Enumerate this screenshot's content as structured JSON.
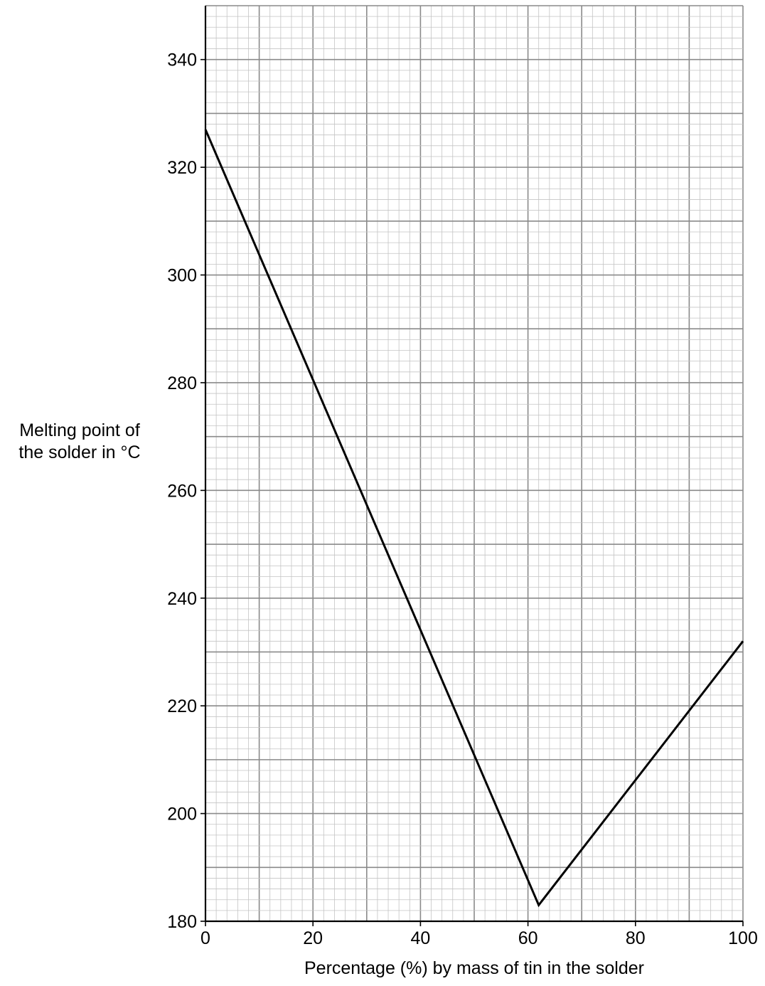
{
  "chart_data": {
    "type": "line",
    "title": "",
    "xlabel": "Percentage (%) by mass of tin in the solder",
    "ylabel_lines": [
      "Melting point of",
      "the solder in °C"
    ],
    "xlim": [
      0,
      100
    ],
    "ylim": [
      180,
      350
    ],
    "x_ticks": [
      0,
      20,
      40,
      60,
      80,
      100
    ],
    "y_ticks": [
      180,
      200,
      220,
      240,
      260,
      280,
      300,
      320,
      340
    ],
    "grid": true,
    "legend": "none",
    "line_color": "#000000",
    "series": [
      {
        "x": [
          0,
          62,
          100
        ],
        "y": [
          327,
          183,
          232
        ]
      }
    ]
  }
}
